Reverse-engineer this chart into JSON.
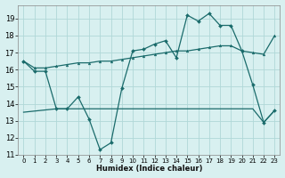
{
  "xlabel": "Humidex (Indice chaleur)",
  "bg_color": "#d8f0f0",
  "grid_color": "#b0d8d8",
  "line_color": "#1a6b6b",
  "xlim": [
    -0.5,
    23.5
  ],
  "ylim": [
    11.0,
    19.8
  ],
  "yticks": [
    11,
    12,
    13,
    14,
    15,
    16,
    17,
    18,
    19
  ],
  "xticks": [
    0,
    1,
    2,
    3,
    4,
    5,
    6,
    7,
    8,
    9,
    10,
    11,
    12,
    13,
    14,
    15,
    16,
    17,
    18,
    19,
    20,
    21,
    22,
    23
  ],
  "line1_x": [
    0,
    1,
    2,
    3,
    4,
    5,
    6,
    7,
    8,
    9,
    10,
    11,
    12,
    13,
    14,
    15,
    16,
    17,
    18,
    19,
    20,
    21,
    22,
    23
  ],
  "line1_y": [
    16.5,
    15.9,
    15.9,
    13.7,
    13.7,
    14.4,
    13.1,
    11.3,
    11.7,
    14.9,
    17.1,
    17.2,
    17.5,
    17.7,
    16.7,
    19.2,
    18.85,
    19.3,
    18.6,
    18.6,
    17.1,
    15.1,
    12.9,
    13.6
  ],
  "line2_x": [
    0,
    1,
    2,
    3,
    4,
    5,
    6,
    7,
    8,
    9,
    10,
    11,
    12,
    13,
    14,
    15,
    16,
    17,
    18,
    19,
    20,
    21,
    22,
    23
  ],
  "line2_y": [
    16.5,
    16.1,
    16.1,
    16.2,
    16.3,
    16.4,
    16.4,
    16.5,
    16.5,
    16.6,
    16.7,
    16.8,
    16.9,
    17.0,
    17.1,
    17.1,
    17.2,
    17.3,
    17.4,
    17.4,
    17.1,
    17.0,
    16.9,
    18.0
  ],
  "line3_x": [
    0,
    3,
    4,
    5,
    6,
    7,
    8,
    9,
    10,
    11,
    12,
    13,
    14,
    15,
    16,
    17,
    18,
    19,
    20,
    21,
    22,
    23
  ],
  "line3_y": [
    13.5,
    13.7,
    13.7,
    13.7,
    13.7,
    13.7,
    13.7,
    13.7,
    13.7,
    13.7,
    13.7,
    13.7,
    13.7,
    13.7,
    13.7,
    13.7,
    13.7,
    13.7,
    13.7,
    13.7,
    12.9,
    13.6
  ]
}
